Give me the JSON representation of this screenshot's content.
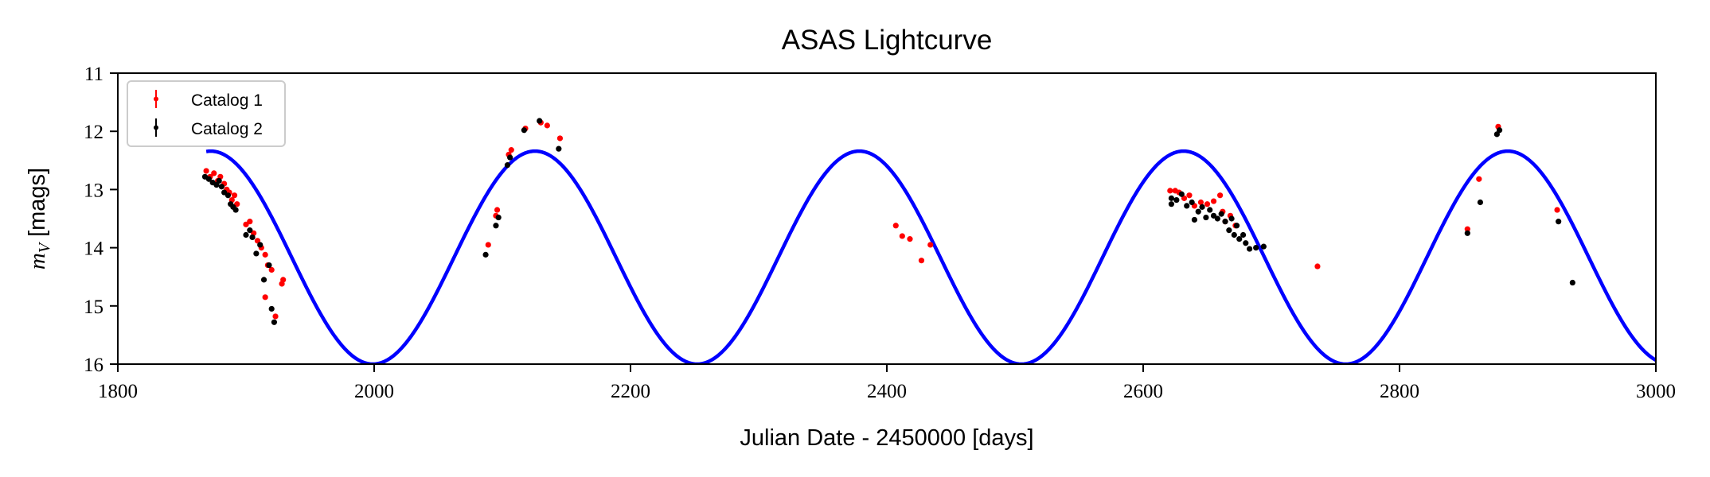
{
  "chart_data": {
    "type": "scatter",
    "title": "ASAS Lightcurve",
    "xlabel": "Julian Date - 2450000 [days]",
    "ylabel_main": "m",
    "ylabel_sub": "V",
    "ylabel_unit": "[mags]",
    "xlim": [
      1800,
      3000
    ],
    "ylim": [
      16,
      11
    ],
    "y_inverted": true,
    "grid": false,
    "legend_position": "top-left",
    "x_ticks": [
      "1800",
      "2000",
      "2200",
      "2400",
      "2600",
      "2800",
      "3000"
    ],
    "y_ticks": [
      "11",
      "12",
      "13",
      "14",
      "15",
      "16"
    ],
    "series": [
      {
        "name": "Catalog 1",
        "color": "#ff0000",
        "points": [
          [
            1869,
            12.68
          ],
          [
            1872,
            12.78
          ],
          [
            1875,
            12.72
          ],
          [
            1878,
            12.85
          ],
          [
            1880,
            12.78
          ],
          [
            1883,
            12.9
          ],
          [
            1885,
            13.0
          ],
          [
            1887,
            13.05
          ],
          [
            1889,
            13.18
          ],
          [
            1891,
            13.1
          ],
          [
            1893,
            13.25
          ],
          [
            1900,
            13.6
          ],
          [
            1903,
            13.55
          ],
          [
            1906,
            13.75
          ],
          [
            1909,
            13.88
          ],
          [
            1912,
            14.0
          ],
          [
            1915,
            14.12
          ],
          [
            1917,
            14.3
          ],
          [
            1920,
            14.38
          ],
          [
            1915,
            14.85
          ],
          [
            1923,
            15.18
          ],
          [
            1928,
            14.62
          ],
          [
            1929,
            14.55
          ],
          [
            2089,
            13.95
          ],
          [
            2095,
            13.45
          ],
          [
            2096,
            13.35
          ],
          [
            2105,
            12.4
          ],
          [
            2107,
            12.32
          ],
          [
            2118,
            11.95
          ],
          [
            2130,
            11.85
          ],
          [
            2135,
            11.9
          ],
          [
            2145,
            12.12
          ],
          [
            2407,
            13.62
          ],
          [
            2412,
            13.8
          ],
          [
            2418,
            13.85
          ],
          [
            2427,
            14.22
          ],
          [
            2434,
            13.95
          ],
          [
            2621,
            13.02
          ],
          [
            2625,
            13.02
          ],
          [
            2628,
            13.05
          ],
          [
            2632,
            13.15
          ],
          [
            2636,
            13.1
          ],
          [
            2640,
            13.28
          ],
          [
            2645,
            13.22
          ],
          [
            2650,
            13.25
          ],
          [
            2655,
            13.2
          ],
          [
            2660,
            13.1
          ],
          [
            2662,
            13.38
          ],
          [
            2664,
            13.55
          ],
          [
            2668,
            13.45
          ],
          [
            2672,
            13.62
          ],
          [
            2736,
            14.32
          ],
          [
            2853,
            13.68
          ],
          [
            2862,
            12.82
          ],
          [
            2877,
            11.92
          ],
          [
            2923,
            13.35
          ]
        ]
      },
      {
        "name": "Catalog 2",
        "color": "#000000",
        "points": [
          [
            1868,
            12.78
          ],
          [
            1871,
            12.82
          ],
          [
            1874,
            12.88
          ],
          [
            1877,
            12.92
          ],
          [
            1879,
            12.85
          ],
          [
            1881,
            12.95
          ],
          [
            1883,
            13.05
          ],
          [
            1886,
            13.1
          ],
          [
            1888,
            13.25
          ],
          [
            1890,
            13.3
          ],
          [
            1892,
            13.35
          ],
          [
            1900,
            13.78
          ],
          [
            1903,
            13.7
          ],
          [
            1905,
            13.82
          ],
          [
            1908,
            14.1
          ],
          [
            1911,
            13.95
          ],
          [
            1914,
            14.55
          ],
          [
            1918,
            14.3
          ],
          [
            1920,
            15.05
          ],
          [
            1922,
            15.28
          ],
          [
            2087,
            14.12
          ],
          [
            2095,
            13.62
          ],
          [
            2097,
            13.48
          ],
          [
            2104,
            12.58
          ],
          [
            2106,
            12.45
          ],
          [
            2117,
            11.98
          ],
          [
            2129,
            11.82
          ],
          [
            2144,
            12.3
          ],
          [
            2622,
            13.15
          ],
          [
            2622,
            13.25
          ],
          [
            2626,
            13.18
          ],
          [
            2630,
            13.08
          ],
          [
            2634,
            13.28
          ],
          [
            2638,
            13.22
          ],
          [
            2640,
            13.52
          ],
          [
            2643,
            13.38
          ],
          [
            2646,
            13.3
          ],
          [
            2649,
            13.48
          ],
          [
            2652,
            13.35
          ],
          [
            2655,
            13.45
          ],
          [
            2658,
            13.5
          ],
          [
            2661,
            13.42
          ],
          [
            2664,
            13.55
          ],
          [
            2667,
            13.7
          ],
          [
            2669,
            13.5
          ],
          [
            2671,
            13.78
          ],
          [
            2673,
            13.62
          ],
          [
            2675,
            13.85
          ],
          [
            2678,
            13.78
          ],
          [
            2680,
            13.92
          ],
          [
            2683,
            14.02
          ],
          [
            2688,
            14.0
          ],
          [
            2694,
            13.98
          ],
          [
            2853,
            13.75
          ],
          [
            2863,
            13.22
          ],
          [
            2876,
            12.05
          ],
          [
            2878,
            11.98
          ],
          [
            2924,
            13.55
          ],
          [
            2935,
            14.6
          ]
        ]
      }
    ],
    "model": {
      "color": "#0000ff",
      "mean": 14.17,
      "amplitude": 1.83,
      "period": 253,
      "max_epoch": 2125.5,
      "x_start": 1869,
      "x_end": 3000
    }
  }
}
